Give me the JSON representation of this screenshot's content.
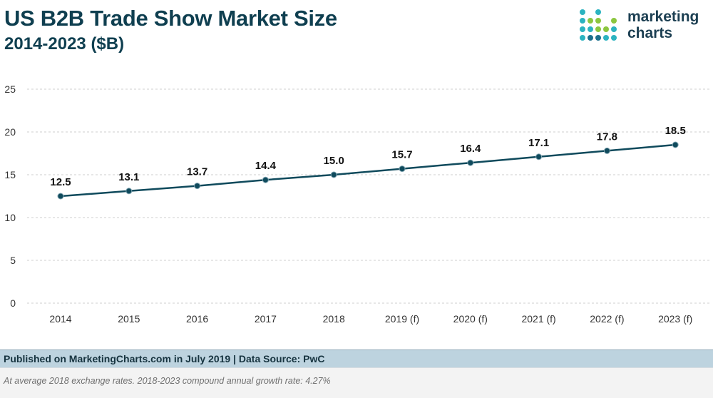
{
  "header": {
    "title": "US B2B Trade Show Market Size",
    "subtitle": "2014-2023 ($B)"
  },
  "logo": {
    "line1": "marketing",
    "line2": "charts",
    "dot_colors": [
      "#2bb3c0",
      "#8cc63f",
      "#1a6f8c"
    ]
  },
  "chart_data": {
    "type": "line",
    "categories": [
      "2014",
      "2015",
      "2016",
      "2017",
      "2018",
      "2019 (f)",
      "2020 (f)",
      "2021 (f)",
      "2022 (f)",
      "2023 (f)"
    ],
    "values": [
      12.5,
      13.1,
      13.7,
      14.4,
      15.0,
      15.7,
      16.4,
      17.1,
      17.8,
      18.5
    ],
    "data_labels": [
      "12.5",
      "13.1",
      "13.7",
      "14.4",
      "15.0",
      "15.7",
      "16.4",
      "17.1",
      "17.8",
      "18.5"
    ],
    "yticks": [
      0,
      5,
      10,
      15,
      20,
      25
    ],
    "ylim": [
      0,
      25
    ],
    "grid": true,
    "line_color": "#0f4a5c",
    "marker_color": "#0f4a5c"
  },
  "footer": {
    "source": "Published on MarketingCharts.com in July 2019 | Data Source: PwC",
    "note": "At average 2018 exchange rates. 2018-2023 compound annual growth rate: 4.27%"
  }
}
